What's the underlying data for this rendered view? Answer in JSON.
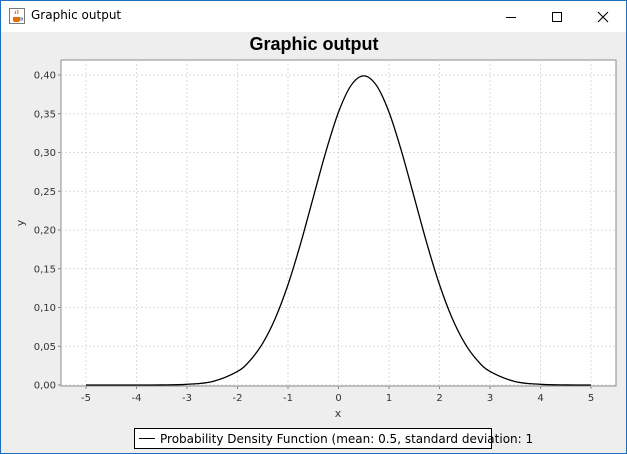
{
  "window": {
    "title": "Graphic output",
    "icon": "java-coffee-cup-icon",
    "controls": [
      "minimize-icon",
      "maximize-icon",
      "close-icon"
    ]
  },
  "chart_data": {
    "type": "line",
    "title": "Graphic output",
    "xlabel": "x",
    "ylabel": "y",
    "xlim": [
      -5,
      5
    ],
    "ylim": [
      0,
      0.4
    ],
    "xticks": [
      "-5",
      "-4",
      "-3",
      "-2",
      "-1",
      "0",
      "1",
      "2",
      "3",
      "4",
      "5"
    ],
    "yticks": [
      "0,00",
      "0,05",
      "0,10",
      "0,15",
      "0,20",
      "0,25",
      "0,30",
      "0,35",
      "0,40"
    ],
    "grid": true,
    "legend_position": "bottom",
    "series": [
      {
        "name": "Probability Density Function (mean: 0.5, standard deviation: 1",
        "color": "#000000",
        "x": [
          -5,
          -4.5,
          -4,
          -3.5,
          -3,
          -2.5,
          -2,
          -1.75,
          -1.5,
          -1.25,
          -1,
          -0.75,
          -0.5,
          -0.25,
          0,
          0.25,
          0.5,
          0.75,
          1,
          1.25,
          1.5,
          1.75,
          2,
          2.25,
          2.5,
          2.75,
          3,
          3.5,
          4,
          4.5,
          5
        ],
        "y": [
          0.0,
          0.0,
          0.0,
          0.0001,
          0.0009,
          0.0044,
          0.0175,
          0.0317,
          0.054,
          0.0863,
          0.1295,
          0.1826,
          0.242,
          0.3011,
          0.3521,
          0.3867,
          0.3989,
          0.3867,
          0.3521,
          0.3011,
          0.242,
          0.1826,
          0.1295,
          0.0863,
          0.054,
          0.0317,
          0.0175,
          0.0044,
          0.0009,
          0.0001,
          0.0
        ]
      }
    ]
  }
}
